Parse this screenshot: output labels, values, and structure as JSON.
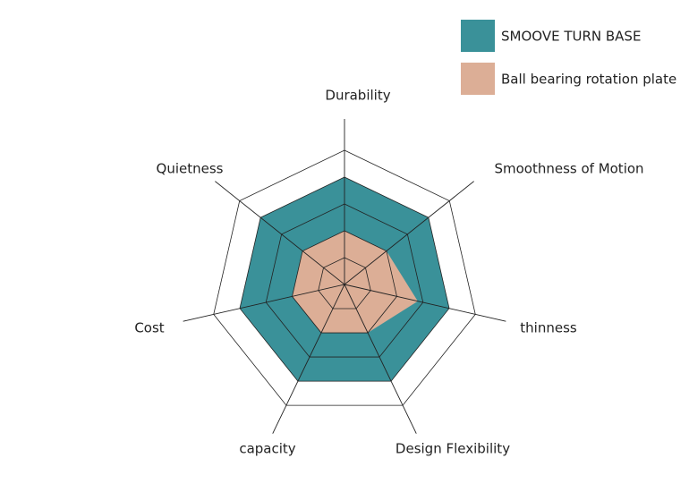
{
  "chart_data": {
    "type": "radar",
    "categories": [
      "Durability",
      "Smoothness of Motion",
      "thinness",
      "Design Flexibility",
      "capacity",
      "Cost",
      "Quietness"
    ],
    "series": [
      {
        "name": "SMOOVE TURN BASE",
        "color": "#3a9199",
        "values": [
          4,
          4,
          4,
          4,
          4,
          4,
          4
        ]
      },
      {
        "name": "Ball bearing rotation plate",
        "color": "#dcae96",
        "values": [
          2,
          2,
          2.8,
          2,
          2,
          2,
          2
        ]
      }
    ],
    "ylim": [
      0,
      5
    ],
    "yticks": [
      1,
      2,
      3,
      4,
      5
    ],
    "grid": true,
    "legend": "top-right"
  }
}
